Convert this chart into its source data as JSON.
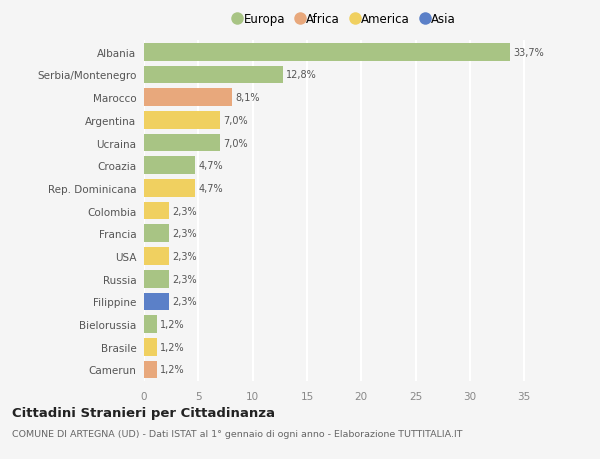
{
  "countries": [
    "Albania",
    "Serbia/Montenegro",
    "Marocco",
    "Argentina",
    "Ucraina",
    "Croazia",
    "Rep. Dominicana",
    "Colombia",
    "Francia",
    "USA",
    "Russia",
    "Filippine",
    "Bielorussia",
    "Brasile",
    "Camerun"
  ],
  "values": [
    33.7,
    12.8,
    8.1,
    7.0,
    7.0,
    4.7,
    4.7,
    2.3,
    2.3,
    2.3,
    2.3,
    2.3,
    1.2,
    1.2,
    1.2
  ],
  "labels": [
    "33,7%",
    "12,8%",
    "8,1%",
    "7,0%",
    "7,0%",
    "4,7%",
    "4,7%",
    "2,3%",
    "2,3%",
    "2,3%",
    "2,3%",
    "2,3%",
    "1,2%",
    "1,2%",
    "1,2%"
  ],
  "continents": [
    "Europa",
    "Europa",
    "Africa",
    "America",
    "Europa",
    "Europa",
    "America",
    "America",
    "Europa",
    "America",
    "Europa",
    "Asia",
    "Europa",
    "America",
    "Africa"
  ],
  "continent_colors": {
    "Europa": "#a8c484",
    "Africa": "#e8a87c",
    "America": "#f0d060",
    "Asia": "#5b80c8"
  },
  "legend_order": [
    "Europa",
    "Africa",
    "America",
    "Asia"
  ],
  "title": "Cittadini Stranieri per Cittadinanza",
  "subtitle": "COMUNE DI ARTEGNA (UD) - Dati ISTAT al 1° gennaio di ogni anno - Elaborazione TUTTITALIA.IT",
  "xlim": [
    0,
    37
  ],
  "xticks": [
    0,
    5,
    10,
    15,
    20,
    25,
    30,
    35
  ],
  "background_color": "#f5f5f5",
  "grid_color": "#ffffff",
  "bar_height": 0.78
}
